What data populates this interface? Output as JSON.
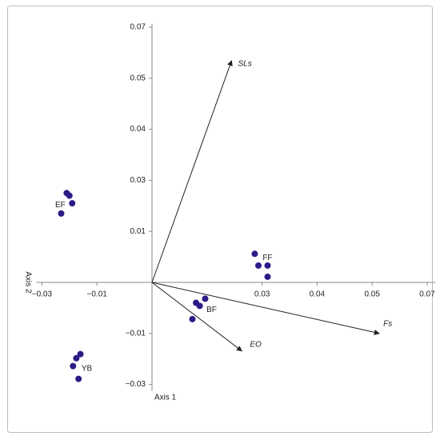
{
  "chart_data": {
    "type": "scatter",
    "x_label": "Axis 1",
    "y_label": "Axis 2",
    "xlim": [
      -0.03,
      0.07
    ],
    "ylim": [
      -0.03,
      0.07
    ],
    "xticks": [
      {
        "value": -0.03,
        "label": "−0.03"
      },
      {
        "value": -0.01,
        "label": "−0.01"
      },
      0.03,
      0.04,
      0.05,
      0.07
    ],
    "yticks": [
      {
        "value": -0.03,
        "label": "−0.03"
      },
      {
        "value": -0.01,
        "label": "−0.01"
      },
      0.01,
      0.03,
      0.04,
      0.05,
      0.07
    ],
    "color": "#2e1a87",
    "series": [
      {
        "name": "EF",
        "x": [
          -0.021,
          -0.02,
          -0.019,
          -0.023
        ],
        "y": [
          0.025,
          0.024,
          0.021,
          0.017
        ]
      },
      {
        "name": "FF",
        "x": [
          0.028,
          0.029,
          0.031,
          0.031
        ],
        "y": [
          0.0056,
          0.0033,
          0.0033,
          0.0011
        ]
      },
      {
        "name": "BF",
        "x": [
          0.0145,
          0.012,
          0.013,
          0.011
        ],
        "y": [
          -0.0032,
          -0.004,
          -0.0046,
          -0.0072
        ]
      },
      {
        "name": "YB",
        "x": [
          -0.016,
          -0.0175,
          -0.0187,
          -0.0167
        ],
        "y": [
          -0.0181,
          -0.0197,
          -0.0228,
          -0.0278
        ]
      }
    ],
    "vectors": [
      {
        "name": "SLs",
        "x": 0.0217,
        "y": 0.0569
      },
      {
        "name": "Fs",
        "x": 0.0526,
        "y": -0.01
      },
      {
        "name": "EO",
        "x": 0.0245,
        "y": -0.0169
      }
    ]
  }
}
